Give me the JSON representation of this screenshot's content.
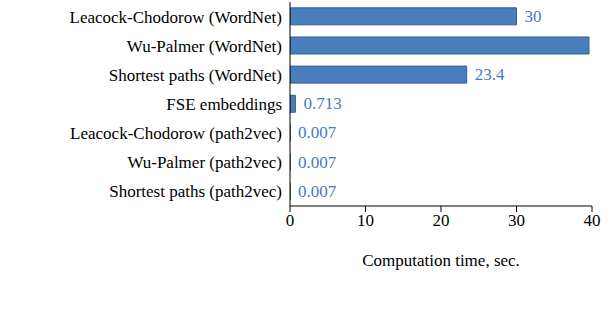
{
  "chart_data": {
    "type": "bar",
    "orientation": "horizontal",
    "categories": [
      "Leacock-Chodorow (WordNet)",
      "Wu-Palmer (WordNet)",
      "Shortest paths (WordNet)",
      "FSE embeddings",
      "Leacock-Chodorow (path2vec)",
      "Wu-Palmer (path2vec)",
      "Shortest paths (path2vec)"
    ],
    "values": [
      30,
      39.6,
      23.4,
      0.713,
      0.007,
      0.007,
      0.007
    ],
    "value_labels": [
      "30",
      null,
      "23.4",
      "0.713",
      "0.007",
      "0.007",
      "0.007"
    ],
    "data_labels": true,
    "color": "#4a7ebb",
    "xlabel": "Computation time, sec.",
    "xlim": [
      0,
      40
    ],
    "xticks": [
      0,
      10,
      20,
      30,
      40
    ],
    "grid": false
  }
}
